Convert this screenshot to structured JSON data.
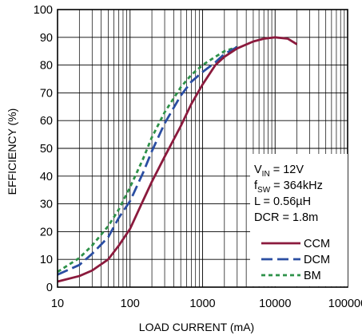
{
  "chart_data": {
    "type": "line",
    "xlabel": "LOAD CURRENT (mA)",
    "ylabel": "EFFICIENCY (%)",
    "x_scale": "log",
    "xlim": [
      10,
      100000
    ],
    "ylim": [
      0,
      100
    ],
    "x_tick_labels": [
      "10",
      "100",
      "1000",
      "10000",
      "100000"
    ],
    "x_ticks": [
      10,
      100,
      1000,
      10000,
      100000
    ],
    "y_ticks": [
      0,
      10,
      20,
      30,
      40,
      50,
      60,
      70,
      80,
      90,
      100
    ],
    "y_tick_labels": [
      "0",
      "10",
      "20",
      "30",
      "40",
      "50",
      "60",
      "70",
      "80",
      "90",
      "100"
    ],
    "grid": true,
    "legend_position": "bottom-right",
    "annotation": {
      "lines": [
        {
          "main": "V",
          "sub": "IN",
          "rest": " = 12V"
        },
        {
          "main": "f",
          "sub": "SW",
          "rest": " = 364kHz"
        },
        {
          "main": "L = 0.56µH",
          "sub": "",
          "rest": ""
        },
        {
          "main": "DCR = 1.8m",
          "sub": "",
          "rest": ""
        }
      ]
    },
    "series": [
      {
        "name": "CCM",
        "color": "#8b1a3d",
        "style": "solid",
        "x": [
          10,
          20,
          30,
          50,
          70,
          100,
          150,
          200,
          300,
          500,
          700,
          1000,
          1500,
          2000,
          3000,
          5000,
          7000,
          10000,
          15000,
          20000
        ],
        "y": [
          2,
          4,
          6,
          10,
          15,
          21,
          31,
          38,
          47,
          58,
          66,
          73,
          80,
          83,
          86,
          88.5,
          89.5,
          90,
          89.5,
          87.5
        ]
      },
      {
        "name": "DCM",
        "color": "#2b4ea2",
        "style": "dashed",
        "x": [
          10,
          20,
          30,
          50,
          70,
          100,
          150,
          200,
          300,
          500,
          700,
          1000,
          1500,
          2000,
          3000
        ],
        "y": [
          4.5,
          8,
          12,
          18,
          25,
          31,
          41,
          49,
          59,
          69,
          74,
          77.5,
          81,
          84,
          86.5
        ]
      },
      {
        "name": "BM",
        "color": "#2e9149",
        "style": "dotted",
        "x": [
          10,
          20,
          30,
          50,
          70,
          100,
          150,
          200,
          300,
          500,
          700,
          1000,
          1500,
          2000,
          3000
        ],
        "y": [
          5.5,
          10.5,
          15,
          22,
          28,
          36,
          46,
          54,
          63,
          72,
          76.5,
          80,
          83,
          85,
          86.5
        ]
      }
    ]
  }
}
